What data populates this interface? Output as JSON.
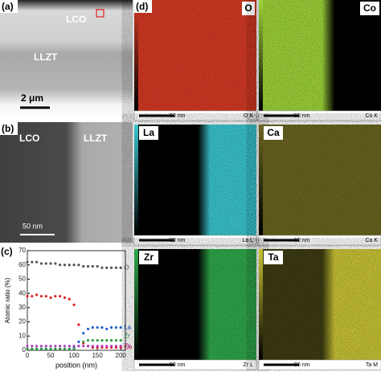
{
  "panels": {
    "a": {
      "label": "(a)",
      "top_phase": "LCO",
      "bottom_phase": "LLZT",
      "scale_bar": "2 μm"
    },
    "b": {
      "label": "(b)",
      "left_phase": "LCO",
      "right_phase": "LLZT",
      "scale_bar": "50 nm"
    },
    "d": {
      "label": "(d)",
      "maps": [
        {
          "element": "O",
          "scale_bar": "50 nm",
          "line": "O K",
          "color": "#d63a24",
          "side": "all",
          "corner": "right"
        },
        {
          "element": "Co",
          "scale_bar": "50 nm",
          "line": "Co K",
          "color": "#9fd43a",
          "side": "left",
          "corner": "right"
        },
        {
          "element": "La",
          "scale_bar": "50 nm",
          "line": "La L",
          "color": "#3bc6cf",
          "side": "right",
          "corner": "left"
        },
        {
          "element": "Ca",
          "scale_bar": "50 nm",
          "line": "Ca K",
          "color": "#6a6520",
          "side": "all",
          "corner": "left"
        },
        {
          "element": "Zr",
          "scale_bar": "50 nm",
          "line": "Zr L",
          "color": "#2fa84a",
          "side": "right",
          "corner": "left"
        },
        {
          "element": "Ta",
          "scale_bar": "50 nm",
          "line": "Ta M",
          "color": "#c9c436",
          "side": "right",
          "corner": "left"
        }
      ]
    }
  },
  "chart_data": {
    "type": "line",
    "panel_label": "(c)",
    "x_label": "position (nm)",
    "y_label": "Atomic ratio (%)",
    "x": [
      0,
      10,
      20,
      30,
      40,
      50,
      60,
      70,
      80,
      90,
      100,
      110,
      120,
      130,
      140,
      150,
      160,
      170,
      180,
      190,
      200
    ],
    "series": [
      {
        "name": "O",
        "color": "#555555",
        "values": [
          62,
          62,
          62,
          61,
          61,
          61,
          61,
          60,
          60,
          60,
          60,
          60,
          59,
          59,
          59,
          59,
          58,
          58,
          58,
          58,
          58
        ]
      },
      {
        "name": "Co",
        "color": "#e02020",
        "values": [
          38,
          38,
          39,
          38,
          38,
          37,
          38,
          38,
          37,
          36,
          32,
          18,
          5,
          3,
          2,
          2,
          2,
          2,
          2,
          2,
          2
        ]
      },
      {
        "name": "La",
        "color": "#2060d0",
        "values": [
          1,
          1,
          1,
          1,
          1,
          1,
          1,
          1,
          1,
          1,
          2,
          6,
          12,
          15,
          16,
          16,
          16,
          15,
          16,
          16,
          16
        ]
      },
      {
        "name": "Zr",
        "color": "#30a040",
        "values": [
          1,
          1,
          1,
          1,
          1,
          1,
          1,
          1,
          1,
          1,
          1,
          3,
          6,
          7,
          7,
          7,
          7,
          7,
          7,
          7,
          7
        ]
      },
      {
        "name": "Ta",
        "color": "#b040c0",
        "values": [
          3,
          3,
          3,
          3,
          3,
          3,
          3,
          3,
          3,
          3,
          3,
          3,
          3,
          3,
          3,
          3,
          3,
          3,
          3,
          3,
          3
        ]
      }
    ],
    "xlim": [
      0,
      210
    ],
    "xticks": [
      0,
      50,
      100,
      150,
      200
    ],
    "ylim": [
      0,
      70
    ],
    "yticks": [
      0,
      10,
      20,
      30,
      40,
      50,
      60,
      70
    ]
  }
}
